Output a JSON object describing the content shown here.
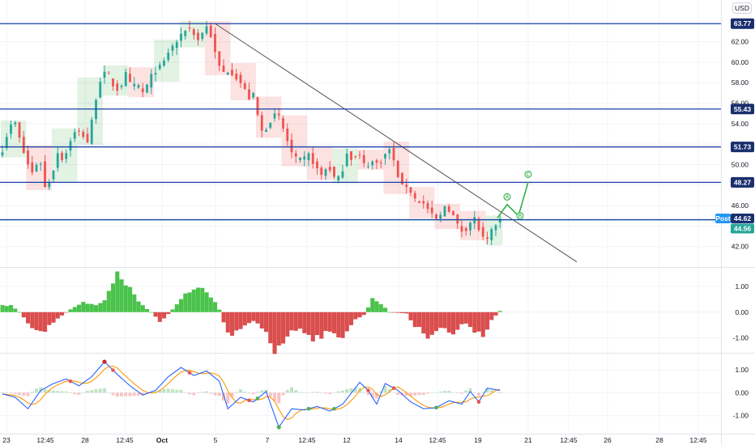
{
  "currency": "USD",
  "post_label": "Post",
  "colors": {
    "up": "#26a69a",
    "down": "#ef5350",
    "level": "#1a3fa8",
    "trend": "#555555",
    "wave": "#22ab3b",
    "hist_up": "#2db82d",
    "hist_down": "#d32f2f",
    "k_line": "#2962ff",
    "d_line": "#ff9800"
  },
  "chart_data": [
    {
      "type": "candlestick",
      "name": "price",
      "x_ticks": [
        "23",
        "12:45",
        "28",
        "12:45",
        "Oct",
        "5",
        "7",
        "12:45",
        "12",
        "14",
        "12:45",
        "19",
        "21",
        "12:45",
        "26",
        "28",
        "12:45"
      ],
      "y_ticks": [
        "42.00",
        "44.00",
        "46.00",
        "48.00",
        "50.00",
        "52.00",
        "54.00",
        "56.00",
        "58.00",
        "60.00",
        "62.00"
      ],
      "ylim": [
        40,
        64.5
      ],
      "close_path": [
        51.5,
        53.5,
        54.2,
        52.0,
        50.2,
        49.0,
        51.0,
        47.5,
        48.9,
        51.2,
        50.4,
        52.4,
        53.3,
        53.0,
        52.1,
        56.0,
        58.5,
        59.0,
        57.8,
        57.2,
        58.9,
        57.5,
        57.8,
        56.9,
        58.4,
        59.3,
        59.6,
        61.0,
        61.8,
        62.4,
        63.5,
        63.0,
        62.0,
        63.8,
        62.5,
        59.8,
        59.0,
        59.3,
        58.6,
        57.8,
        56.5,
        56.8,
        53.1,
        53.7,
        54.8,
        54.6,
        53.0,
        51.2,
        50.3,
        50.5,
        51.0,
        49.7,
        48.9,
        50.0,
        48.7,
        48.6,
        51.3,
        50.5,
        51.0,
        49.8,
        50.3,
        50.1,
        50.7,
        51.5,
        49.7,
        47.8,
        48.0,
        46.7,
        46.4,
        45.9,
        44.9,
        44.5,
        46.0,
        45.5,
        44.1,
        43.4,
        44.3,
        44.8,
        42.8,
        42.5,
        44.0,
        44.6
      ],
      "levels": [
        "63.77",
        "55.43",
        "51.73",
        "48.27",
        "44.62"
      ],
      "last_close": "44.56",
      "trendline": {
        "start": 63.8,
        "end": 40.5
      },
      "wave_labels": [
        "A",
        "B",
        "C"
      ],
      "wave_path": [
        44.8,
        46.1,
        45.0,
        48.3
      ],
      "grid": true
    },
    {
      "type": "histogram",
      "name": "oscillator",
      "y_ticks": [
        "1.00",
        "0.00",
        "-1.00"
      ],
      "ylim": [
        -1.55,
        1.6
      ],
      "waypoints": [
        [
          0,
          0.25
        ],
        [
          2,
          0.3
        ],
        [
          4,
          0.0
        ],
        [
          7,
          -0.6
        ],
        [
          10,
          -0.7
        ],
        [
          13,
          -0.25
        ],
        [
          16,
          0.1
        ],
        [
          19,
          0.4
        ],
        [
          22,
          0.25
        ],
        [
          24,
          0.5
        ],
        [
          27,
          1.4
        ],
        [
          30,
          0.95
        ],
        [
          32,
          0.4
        ],
        [
          35,
          0.0
        ],
        [
          37,
          -0.4
        ],
        [
          40,
          0.1
        ],
        [
          43,
          0.75
        ],
        [
          46,
          1.1
        ],
        [
          49,
          0.65
        ],
        [
          51,
          0.1
        ],
        [
          53,
          -0.9
        ],
        [
          56,
          -0.7
        ],
        [
          59,
          -0.35
        ],
        [
          62,
          -0.75
        ],
        [
          64,
          -1.5
        ],
        [
          67,
          -0.9
        ],
        [
          70,
          -0.6
        ],
        [
          73,
          -1.0
        ],
        [
          76,
          -0.85
        ],
        [
          80,
          -0.9
        ],
        [
          83,
          -0.3
        ],
        [
          85,
          -0.1
        ],
        [
          87,
          0.5
        ],
        [
          89,
          0.3
        ],
        [
          91,
          0.0
        ],
        [
          95,
          -0.05
        ],
        [
          97,
          -0.55
        ],
        [
          100,
          -0.9
        ],
        [
          103,
          -0.6
        ],
        [
          106,
          -0.85
        ],
        [
          109,
          -0.4
        ],
        [
          111,
          -0.7
        ],
        [
          113,
          -0.9
        ],
        [
          115,
          -0.3
        ],
        [
          117,
          0.05
        ]
      ]
    },
    {
      "type": "line",
      "name": "stochastic",
      "y_ticks": [
        "1.00",
        "0.00",
        "-1.00"
      ],
      "ylim": [
        -1.75,
        1.6
      ],
      "waypoints": [
        [
          0,
          -0.05
        ],
        [
          3,
          -0.2
        ],
        [
          6,
          -0.7
        ],
        [
          9,
          0.1
        ],
        [
          12,
          0.4
        ],
        [
          15,
          0.6
        ],
        [
          18,
          0.3
        ],
        [
          21,
          0.7
        ],
        [
          24,
          1.35
        ],
        [
          27,
          0.8
        ],
        [
          30,
          0.3
        ],
        [
          33,
          -0.1
        ],
        [
          36,
          0.1
        ],
        [
          39,
          0.7
        ],
        [
          42,
          1.1
        ],
        [
          45,
          0.75
        ],
        [
          48,
          0.95
        ],
        [
          51,
          0.5
        ],
        [
          53,
          -0.7
        ],
        [
          56,
          -0.2
        ],
        [
          59,
          -0.4
        ],
        [
          62,
          0.05
        ],
        [
          65,
          -1.5
        ],
        [
          68,
          -0.7
        ],
        [
          71,
          -0.75
        ],
        [
          74,
          -0.6
        ],
        [
          77,
          -0.8
        ],
        [
          80,
          -0.5
        ],
        [
          84,
          0.45
        ],
        [
          86,
          0.1
        ],
        [
          88,
          -0.5
        ],
        [
          90,
          0.4
        ],
        [
          93,
          0.1
        ],
        [
          96,
          -0.4
        ],
        [
          99,
          -0.7
        ],
        [
          102,
          -0.65
        ],
        [
          105,
          -0.35
        ],
        [
          108,
          -0.5
        ],
        [
          110,
          0.05
        ],
        [
          112,
          -0.4
        ],
        [
          114,
          0.2
        ],
        [
          117,
          0.1
        ]
      ]
    }
  ]
}
